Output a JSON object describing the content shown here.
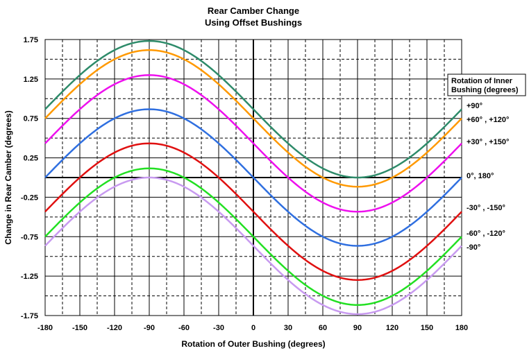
{
  "chart_data": {
    "type": "line",
    "title": [
      "Rear Camber Change",
      "Using Offset Bushings"
    ],
    "xlabel": "Rotation of Outer Bushing (degrees)",
    "ylabel": "Change in Rear Camber (degrees)",
    "xlim": [
      -180,
      180
    ],
    "ylim": [
      -1.75,
      1.75
    ],
    "xticks": [
      -180,
      -150,
      -120,
      -90,
      -60,
      -30,
      0,
      30,
      60,
      90,
      120,
      150,
      180
    ],
    "xtick_labels": [
      "-180",
      "-150",
      "-120",
      "-90",
      "-60",
      "-30",
      "0",
      "30",
      "60",
      "90",
      "120",
      "150",
      "180"
    ],
    "yticks": [
      1.75,
      1.25,
      0.75,
      0.25,
      -0.25,
      -0.75,
      -1.25,
      -1.75
    ],
    "ytick_labels": [
      "1.75",
      "1.25",
      "0.75",
      "0.25",
      "-0.25",
      "-0.75",
      "-1.25",
      "-1.75"
    ],
    "grid": true,
    "legend_title": [
      "Rotation of Inner",
      "Bushing (degrees)"
    ],
    "legend_position": "right",
    "series": [
      {
        "name": "+90°",
        "label": "+90°",
        "color": "#2e8b6a",
        "amplitude": 0.866,
        "offset": 0.866,
        "points": [
          [
            -180,
            0.866
          ],
          [
            -90,
            1.732
          ],
          [
            0,
            0.866
          ],
          [
            90,
            0.0
          ],
          [
            180,
            0.866
          ]
        ]
      },
      {
        "name": "+60°, +120°",
        "label": "+60° , +120°",
        "color": "#ff9900",
        "amplitude": 0.866,
        "offset": 0.75,
        "points": [
          [
            -180,
            0.75
          ],
          [
            -90,
            1.616
          ],
          [
            0,
            0.75
          ],
          [
            90,
            -0.116
          ],
          [
            180,
            0.75
          ]
        ]
      },
      {
        "name": "+30°, +150°",
        "label": "+30° , +150°",
        "color": "#ee10ee",
        "amplitude": 0.866,
        "offset": 0.433,
        "points": [
          [
            -180,
            0.433
          ],
          [
            -90,
            1.299
          ],
          [
            0,
            0.433
          ],
          [
            90,
            -0.433
          ],
          [
            180,
            0.433
          ]
        ]
      },
      {
        "name": "0°, 180°",
        "label": "0°, 180°",
        "color": "#2f6fe0",
        "amplitude": 0.866,
        "offset": 0.0,
        "points": [
          [
            -180,
            0.0
          ],
          [
            -90,
            0.866
          ],
          [
            0,
            0.0
          ],
          [
            90,
            -0.866
          ],
          [
            180,
            0.0
          ]
        ]
      },
      {
        "name": "-30°, -150°",
        "label": "-30° , -150°",
        "color": "#e01010",
        "amplitude": 0.866,
        "offset": -0.433,
        "points": [
          [
            -180,
            -0.433
          ],
          [
            -90,
            0.433
          ],
          [
            0,
            -0.433
          ],
          [
            90,
            -1.299
          ],
          [
            180,
            -0.433
          ]
        ]
      },
      {
        "name": "-60°, -120°",
        "label": "-60° , -120°",
        "color": "#22e022",
        "amplitude": 0.866,
        "offset": -0.75,
        "points": [
          [
            -180,
            -0.75
          ],
          [
            -90,
            0.116
          ],
          [
            0,
            -0.75
          ],
          [
            90,
            -1.616
          ],
          [
            180,
            -0.75
          ]
        ]
      },
      {
        "name": "-90°",
        "label": "-90°",
        "color": "#c89af0",
        "amplitude": 0.866,
        "offset": -0.866,
        "points": [
          [
            -180,
            -0.866
          ],
          [
            -90,
            0.0
          ],
          [
            0,
            -0.866
          ],
          [
            90,
            -1.732
          ],
          [
            180,
            -0.866
          ]
        ]
      }
    ]
  }
}
